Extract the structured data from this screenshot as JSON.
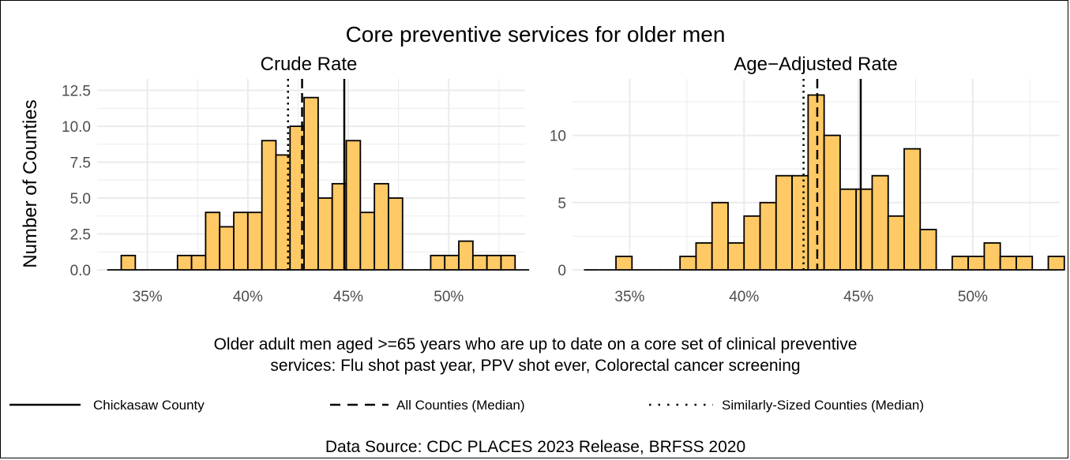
{
  "title": "Core preventive services for older men",
  "caption_line1": "Older adult men aged >=65 years who are up to date on a core set of clinical preventive",
  "caption_line2": "services: Flu shot past year, PPV shot ever, Colorectal cancer screening",
  "source": "Data Source: CDC PLACES 2023 Release, BRFSS 2020",
  "ylabel": "Number of Counties",
  "colors": {
    "bar_fill": "#FFC966",
    "bar_stroke": "#000000",
    "grid": "#EBEBEB"
  },
  "legend": [
    {
      "label": "Chickasaw County",
      "style": "solid"
    },
    {
      "label": "All Counties (Median)",
      "style": "dashed"
    },
    {
      "label": "Similarly-Sized Counties (Median)",
      "style": "dotted"
    }
  ],
  "chart_data": [
    {
      "type": "bar",
      "subtitle": "Crude Rate",
      "bin_width": 0.7,
      "bin_start": 33.0,
      "counts": [
        0,
        1,
        0,
        0,
        0,
        1,
        1,
        4,
        3,
        4,
        4,
        9,
        8,
        10,
        12,
        5,
        6,
        9,
        4,
        6,
        5,
        0,
        0,
        1,
        1,
        2,
        1,
        1,
        1,
        0
      ],
      "xlim": [
        32.5,
        53.8
      ],
      "ylim": [
        0,
        13.3
      ],
      "xticks": [
        35,
        40,
        45,
        50
      ],
      "xtick_labels": [
        "35%",
        "40%",
        "45%",
        "50%"
      ],
      "yticks": [
        0,
        2.5,
        5,
        7.5,
        10,
        12.5
      ],
      "ytick_labels": [
        "0.0",
        "2.5",
        "5.0",
        "7.5",
        "10.0",
        "12.5"
      ],
      "lines": {
        "county": 44.8,
        "all_median": 42.7,
        "similar_median": 42.0
      }
    },
    {
      "type": "bar",
      "subtitle": "Age−Adjusted Rate",
      "bin_width": 0.7,
      "bin_start": 33.0,
      "counts": [
        0,
        0,
        1,
        0,
        0,
        0,
        1,
        2,
        5,
        2,
        4,
        5,
        7,
        7,
        13,
        10,
        6,
        6,
        7,
        4,
        9,
        3,
        0,
        1,
        1,
        2,
        1,
        1,
        0,
        1
      ],
      "xlim": [
        32.5,
        53.8
      ],
      "ylim": [
        0,
        14.2
      ],
      "xticks": [
        35,
        40,
        45,
        50
      ],
      "xtick_labels": [
        "35%",
        "40%",
        "45%",
        "50%"
      ],
      "yticks": [
        0,
        5,
        10
      ],
      "ytick_labels": [
        "0",
        "5",
        "10"
      ],
      "lines": {
        "county": 45.1,
        "all_median": 43.2,
        "similar_median": 42.6
      }
    }
  ]
}
